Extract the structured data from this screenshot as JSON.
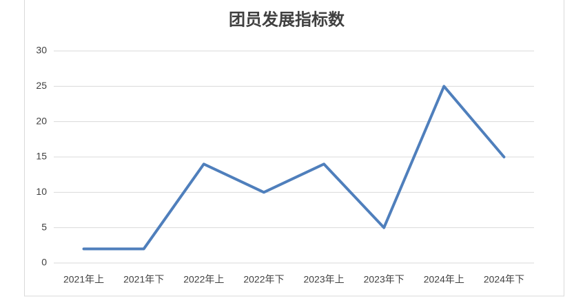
{
  "chart_data": {
    "type": "line",
    "title": "团员发展指标数",
    "categories": [
      "2021年上",
      "2021年下",
      "2022年上",
      "2022年下",
      "2023年上",
      "2023年下",
      "2024年上",
      "2024年下"
    ],
    "values": [
      2,
      2,
      14,
      10,
      14,
      5,
      25,
      15
    ],
    "color": "#4f7fbc",
    "ylim": [
      0,
      30
    ],
    "yticks": [
      0,
      5,
      10,
      15,
      20,
      25,
      30
    ],
    "grid": true
  }
}
